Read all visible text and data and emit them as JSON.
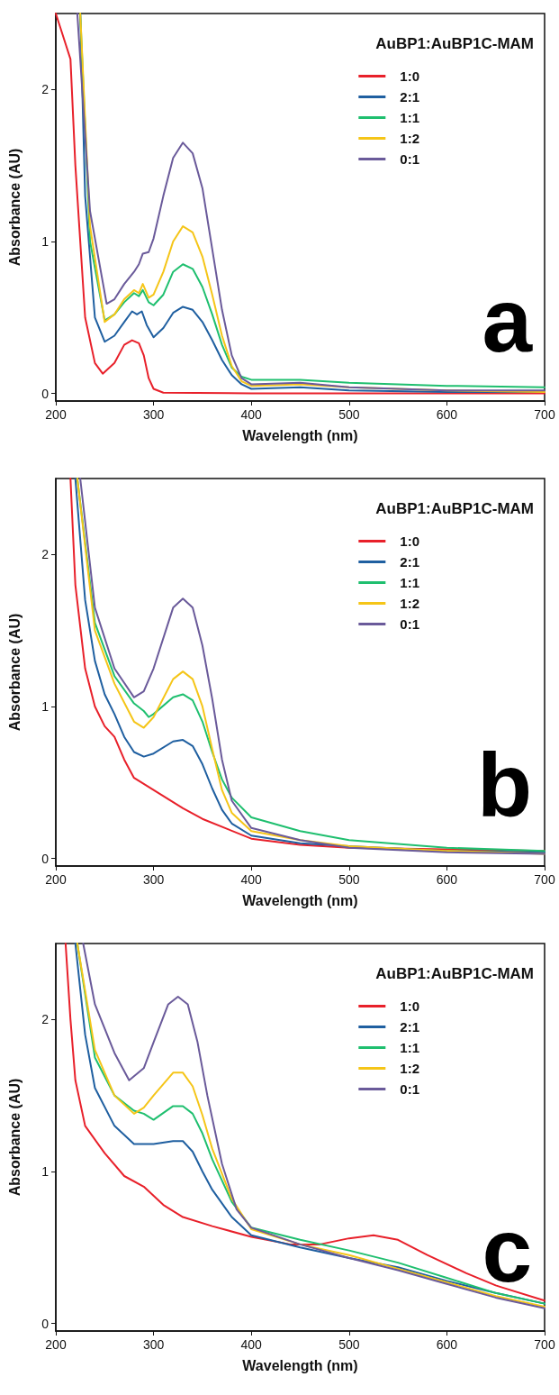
{
  "chart_data": [
    {
      "type": "line",
      "xlabel": "Wavelength (nm)",
      "ylabel": "Absorbance (AU)",
      "legend_title": "AuBP1:AuBP1C-MAM",
      "legend": "top right",
      "marker": "none",
      "line_style": "solid",
      "grid": false,
      "annotations": [
        "a"
      ],
      "xlim": [
        200,
        700
      ],
      "xticks": [
        200,
        300,
        400,
        500,
        600,
        700
      ],
      "ylim": [
        -0.05,
        2.5
      ],
      "yticks": [
        0,
        1,
        2
      ],
      "series": [
        {
          "name": "1:0",
          "color": "#e8202a",
          "x": [
            200,
            210,
            215,
            220,
            230,
            240,
            248,
            260,
            270,
            278,
            285,
            290,
            295,
            300,
            310,
            400,
            500,
            600,
            700
          ],
          "values": [
            2.5,
            2.3,
            2.2,
            1.5,
            0.5,
            0.2,
            0.13,
            0.2,
            0.32,
            0.35,
            0.33,
            0.25,
            0.1,
            0.03,
            0.005,
            0,
            0,
            0,
            0
          ]
        },
        {
          "name": "2:1",
          "color": "#1f5fa0",
          "x": [
            225,
            230,
            240,
            250,
            260,
            270,
            278,
            283,
            288,
            293,
            300,
            310,
            320,
            330,
            340,
            350,
            360,
            370,
            380,
            390,
            400,
            450,
            500,
            600,
            700
          ],
          "values": [
            2.5,
            1.3,
            0.5,
            0.34,
            0.38,
            0.47,
            0.54,
            0.52,
            0.54,
            0.45,
            0.37,
            0.43,
            0.53,
            0.57,
            0.55,
            0.47,
            0.35,
            0.22,
            0.12,
            0.06,
            0.03,
            0.04,
            0.02,
            0.01,
            0.01
          ]
        },
        {
          "name": "1:1",
          "color": "#1fbf6f",
          "x": [
            225,
            235,
            250,
            260,
            270,
            280,
            285,
            289,
            295,
            300,
            310,
            320,
            330,
            340,
            350,
            360,
            370,
            380,
            390,
            400,
            450,
            500,
            600,
            700
          ],
          "values": [
            2.5,
            1.0,
            0.48,
            0.52,
            0.6,
            0.66,
            0.64,
            0.68,
            0.6,
            0.58,
            0.65,
            0.8,
            0.85,
            0.82,
            0.7,
            0.52,
            0.32,
            0.17,
            0.11,
            0.09,
            0.09,
            0.07,
            0.05,
            0.04
          ]
        },
        {
          "name": "1:2",
          "color": "#f5c518",
          "x": [
            225,
            235,
            250,
            260,
            270,
            280,
            285,
            289,
            295,
            300,
            310,
            320,
            330,
            340,
            350,
            360,
            370,
            380,
            390,
            400,
            450,
            500,
            600,
            700
          ],
          "values": [
            2.5,
            1.1,
            0.47,
            0.52,
            0.62,
            0.68,
            0.66,
            0.72,
            0.63,
            0.65,
            0.8,
            1.0,
            1.1,
            1.06,
            0.9,
            0.65,
            0.38,
            0.18,
            0.08,
            0.05,
            0.06,
            0.04,
            0.02,
            0.01
          ]
        },
        {
          "name": "0:1",
          "color": "#6a5a9a",
          "x": [
            222,
            235,
            252,
            260,
            270,
            280,
            285,
            289,
            295,
            300,
            310,
            320,
            330,
            340,
            350,
            360,
            370,
            380,
            390,
            400,
            450,
            500,
            600,
            700
          ],
          "values": [
            2.5,
            1.2,
            0.59,
            0.62,
            0.72,
            0.8,
            0.85,
            0.92,
            0.93,
            1.02,
            1.3,
            1.55,
            1.65,
            1.58,
            1.35,
            0.95,
            0.55,
            0.25,
            0.1,
            0.06,
            0.07,
            0.04,
            0.02,
            0.02
          ]
        }
      ]
    },
    {
      "type": "line",
      "xlabel": "Wavelength (nm)",
      "ylabel": "Absorbance (AU)",
      "legend_title": "AuBP1:AuBP1C-MAM",
      "legend": "top right",
      "marker": "none",
      "line_style": "solid",
      "grid": false,
      "annotations": [
        "b"
      ],
      "xlim": [
        200,
        700
      ],
      "xticks": [
        200,
        300,
        400,
        500,
        600,
        700
      ],
      "ylim": [
        -0.05,
        2.5
      ],
      "yticks": [
        0,
        1,
        2
      ],
      "series": [
        {
          "name": "1:0",
          "color": "#e8202a",
          "x": [
            215,
            220,
            230,
            240,
            250,
            260,
            270,
            280,
            300,
            330,
            350,
            400,
            450,
            500,
            600,
            700
          ],
          "values": [
            2.5,
            1.8,
            1.25,
            1.0,
            0.87,
            0.8,
            0.65,
            0.53,
            0.45,
            0.33,
            0.26,
            0.13,
            0.09,
            0.07,
            0.06,
            0.05
          ]
        },
        {
          "name": "2:1",
          "color": "#1f5fa0",
          "x": [
            220,
            230,
            240,
            250,
            260,
            270,
            280,
            290,
            300,
            320,
            330,
            340,
            350,
            360,
            370,
            380,
            400,
            450,
            500,
            600,
            700
          ],
          "values": [
            2.5,
            1.7,
            1.3,
            1.08,
            0.95,
            0.8,
            0.7,
            0.67,
            0.69,
            0.77,
            0.78,
            0.74,
            0.62,
            0.46,
            0.32,
            0.23,
            0.15,
            0.1,
            0.08,
            0.05,
            0.04
          ]
        },
        {
          "name": "1:1",
          "color": "#1fbf6f",
          "x": [
            222,
            240,
            260,
            280,
            290,
            295,
            300,
            320,
            330,
            340,
            350,
            360,
            370,
            380,
            400,
            450,
            500,
            600,
            700
          ],
          "values": [
            2.5,
            1.55,
            1.2,
            1.02,
            0.97,
            0.93,
            0.95,
            1.06,
            1.08,
            1.04,
            0.9,
            0.7,
            0.52,
            0.4,
            0.27,
            0.18,
            0.12,
            0.07,
            0.05
          ]
        },
        {
          "name": "1:2",
          "color": "#f5c518",
          "x": [
            222,
            240,
            260,
            280,
            290,
            300,
            320,
            330,
            340,
            350,
            360,
            370,
            380,
            400,
            450,
            500,
            600,
            700
          ],
          "values": [
            2.5,
            1.5,
            1.15,
            0.9,
            0.86,
            0.93,
            1.18,
            1.23,
            1.18,
            1.0,
            0.72,
            0.45,
            0.3,
            0.18,
            0.12,
            0.08,
            0.05,
            0.03
          ]
        },
        {
          "name": "0:1",
          "color": "#6a5a9a",
          "x": [
            225,
            240,
            260,
            280,
            290,
            300,
            320,
            330,
            340,
            350,
            360,
            370,
            380,
            400,
            450,
            500,
            600,
            700
          ],
          "values": [
            2.5,
            1.65,
            1.25,
            1.06,
            1.1,
            1.25,
            1.65,
            1.71,
            1.65,
            1.4,
            1.05,
            0.65,
            0.38,
            0.2,
            0.12,
            0.07,
            0.04,
            0.03
          ]
        }
      ]
    },
    {
      "type": "line",
      "xlabel": "Wavelength (nm)",
      "ylabel": "Absorbance (AU)",
      "legend_title": "AuBP1:AuBP1C-MAM",
      "legend": "top right",
      "marker": "none",
      "line_style": "solid",
      "grid": false,
      "annotations": [
        "c"
      ],
      "xlim": [
        200,
        700
      ],
      "xticks": [
        200,
        300,
        400,
        500,
        600,
        700
      ],
      "ylim": [
        -0.05,
        2.5
      ],
      "yticks": [
        0,
        1,
        2
      ],
      "series": [
        {
          "name": "1:0",
          "color": "#e8202a",
          "x": [
            210,
            215,
            220,
            230,
            250,
            270,
            290,
            310,
            330,
            360,
            400,
            440,
            470,
            500,
            525,
            550,
            580,
            620,
            650,
            655,
            700
          ],
          "values": [
            2.5,
            2.0,
            1.6,
            1.3,
            1.12,
            0.97,
            0.9,
            0.78,
            0.7,
            0.64,
            0.57,
            0.52,
            0.52,
            0.56,
            0.58,
            0.55,
            0.45,
            0.33,
            0.25,
            0.24,
            0.15
          ]
        },
        {
          "name": "2:1",
          "color": "#1f5fa0",
          "x": [
            220,
            230,
            240,
            260,
            280,
            300,
            320,
            330,
            340,
            350,
            360,
            380,
            400,
            450,
            500,
            550,
            600,
            650,
            700
          ],
          "values": [
            2.5,
            1.9,
            1.55,
            1.3,
            1.18,
            1.18,
            1.2,
            1.2,
            1.13,
            1.0,
            0.88,
            0.7,
            0.58,
            0.5,
            0.43,
            0.37,
            0.28,
            0.2,
            0.13
          ]
        },
        {
          "name": "1:1",
          "color": "#1fbf6f",
          "x": [
            222,
            240,
            260,
            280,
            290,
            300,
            320,
            330,
            340,
            350,
            360,
            380,
            400,
            450,
            500,
            550,
            600,
            650,
            700
          ],
          "values": [
            2.5,
            1.75,
            1.5,
            1.4,
            1.38,
            1.34,
            1.43,
            1.43,
            1.38,
            1.25,
            1.08,
            0.8,
            0.63,
            0.55,
            0.48,
            0.4,
            0.3,
            0.2,
            0.13
          ]
        },
        {
          "name": "1:2",
          "color": "#f5c518",
          "x": [
            222,
            240,
            260,
            280,
            290,
            300,
            320,
            330,
            340,
            350,
            360,
            380,
            400,
            450,
            500,
            550,
            600,
            650,
            700
          ],
          "values": [
            2.5,
            1.8,
            1.5,
            1.38,
            1.42,
            1.5,
            1.65,
            1.65,
            1.56,
            1.37,
            1.15,
            0.82,
            0.62,
            0.52,
            0.45,
            0.36,
            0.27,
            0.18,
            0.11
          ]
        },
        {
          "name": "0:1",
          "color": "#6a5a9a",
          "x": [
            228,
            240,
            260,
            275,
            290,
            300,
            315,
            325,
            335,
            345,
            355,
            370,
            385,
            400,
            450,
            500,
            550,
            600,
            650,
            700
          ],
          "values": [
            2.5,
            2.1,
            1.78,
            1.6,
            1.68,
            1.85,
            2.1,
            2.15,
            2.1,
            1.85,
            1.5,
            1.05,
            0.75,
            0.63,
            0.52,
            0.43,
            0.35,
            0.26,
            0.17,
            0.1
          ]
        }
      ]
    }
  ]
}
